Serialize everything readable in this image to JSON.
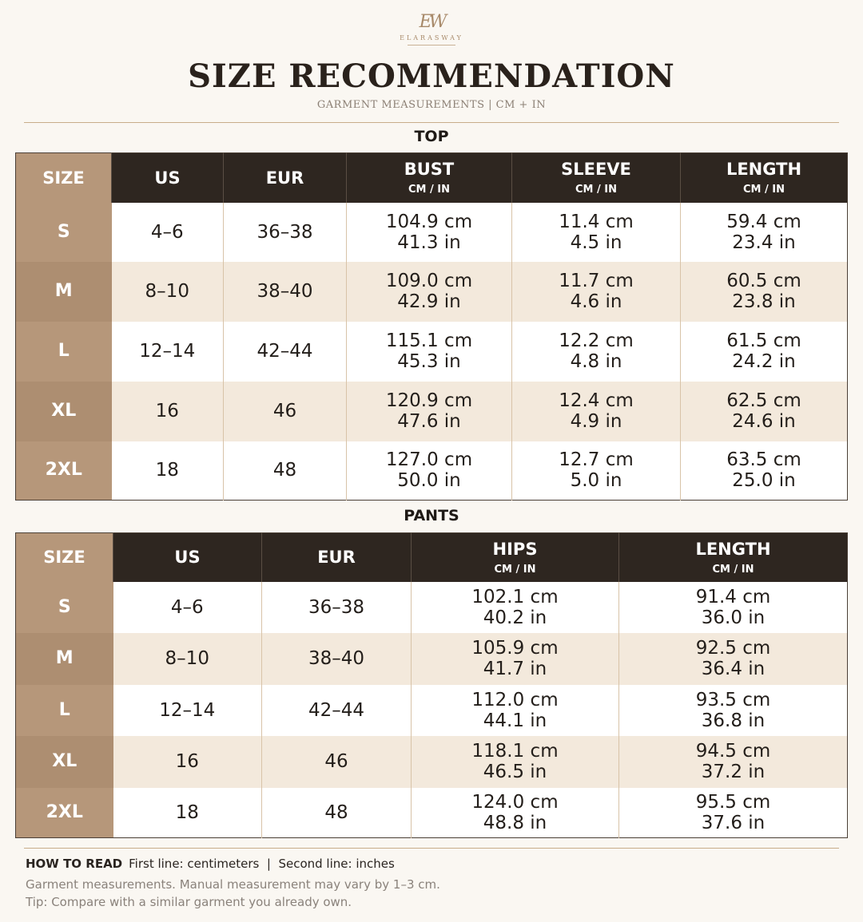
{
  "brand": {
    "mark": "EW",
    "name": "ELARASWAY"
  },
  "header": {
    "title": "SIZE RECOMMENDATION",
    "subtitle": "GARMENT MEASUREMENTS  |  CM + IN"
  },
  "top": {
    "section_title": "TOP",
    "columns": [
      {
        "label": "SIZE",
        "sub": ""
      },
      {
        "label": "US",
        "sub": ""
      },
      {
        "label": "EUR",
        "sub": ""
      },
      {
        "label": "BUST",
        "sub": "CM / IN"
      },
      {
        "label": "SLEEVE",
        "sub": "CM / IN"
      },
      {
        "label": "LENGTH",
        "sub": "CM / IN"
      }
    ],
    "rows": [
      {
        "size": "S",
        "us": "4–6",
        "eur": "36–38",
        "bust_cm": "104.9 cm",
        "bust_in": "41.3 in",
        "sleeve_cm": "11.4 cm",
        "sleeve_in": "4.5 in",
        "length_cm": "59.4 cm",
        "length_in": "23.4 in"
      },
      {
        "size": "M",
        "us": "8–10",
        "eur": "38–40",
        "bust_cm": "109.0 cm",
        "bust_in": "42.9 in",
        "sleeve_cm": "11.7 cm",
        "sleeve_in": "4.6 in",
        "length_cm": "60.5 cm",
        "length_in": "23.8 in"
      },
      {
        "size": "L",
        "us": "12–14",
        "eur": "42–44",
        "bust_cm": "115.1 cm",
        "bust_in": "45.3 in",
        "sleeve_cm": "12.2 cm",
        "sleeve_in": "4.8 in",
        "length_cm": "61.5 cm",
        "length_in": "24.2 in"
      },
      {
        "size": "XL",
        "us": "16",
        "eur": "46",
        "bust_cm": "120.9 cm",
        "bust_in": "47.6 in",
        "sleeve_cm": "12.4 cm",
        "sleeve_in": "4.9 in",
        "length_cm": "62.5 cm",
        "length_in": "24.6 in"
      },
      {
        "size": "2XL",
        "us": "18",
        "eur": "48",
        "bust_cm": "127.0 cm",
        "bust_in": "50.0 in",
        "sleeve_cm": "12.7 cm",
        "sleeve_in": "5.0 in",
        "length_cm": "63.5 cm",
        "length_in": "25.0 in"
      }
    ]
  },
  "pants": {
    "section_title": "PANTS",
    "columns": [
      {
        "label": "SIZE",
        "sub": ""
      },
      {
        "label": "US",
        "sub": ""
      },
      {
        "label": "EUR",
        "sub": ""
      },
      {
        "label": "HIPS",
        "sub": "CM / IN"
      },
      {
        "label": "LENGTH",
        "sub": "CM / IN"
      }
    ],
    "rows": [
      {
        "size": "S",
        "us": "4–6",
        "eur": "36–38",
        "hips_cm": "102.1 cm",
        "hips_in": "40.2 in",
        "length_cm": "91.4 cm",
        "length_in": "36.0 in"
      },
      {
        "size": "M",
        "us": "8–10",
        "eur": "38–40",
        "hips_cm": "105.9 cm",
        "hips_in": "41.7 in",
        "length_cm": "92.5 cm",
        "length_in": "36.4 in"
      },
      {
        "size": "L",
        "us": "12–14",
        "eur": "42–44",
        "hips_cm": "112.0 cm",
        "hips_in": "44.1 in",
        "length_cm": "93.5 cm",
        "length_in": "36.8 in"
      },
      {
        "size": "XL",
        "us": "16",
        "eur": "46",
        "hips_cm": "118.1 cm",
        "hips_in": "46.5 in",
        "length_cm": "94.5 cm",
        "length_in": "37.2 in"
      },
      {
        "size": "2XL",
        "us": "18",
        "eur": "48",
        "hips_cm": "124.0 cm",
        "hips_in": "48.8 in",
        "length_cm": "95.5 cm",
        "length_in": "37.6 in"
      }
    ]
  },
  "footer": {
    "how_to_read_label": "HOW TO READ",
    "how_to_read_text": "First line: centimeters  |  Second line: inches",
    "note_1": "Garment measurements. Manual measurement may vary by 1–3 cm.",
    "note_2": "Tip: Compare with a similar garment you already own."
  },
  "colors": {
    "header_dark": "#2e2620",
    "size_tan": "#b6977a",
    "row_alt": "#f3e9dc",
    "background": "#faf7f2",
    "rule": "#c8ad8a"
  }
}
